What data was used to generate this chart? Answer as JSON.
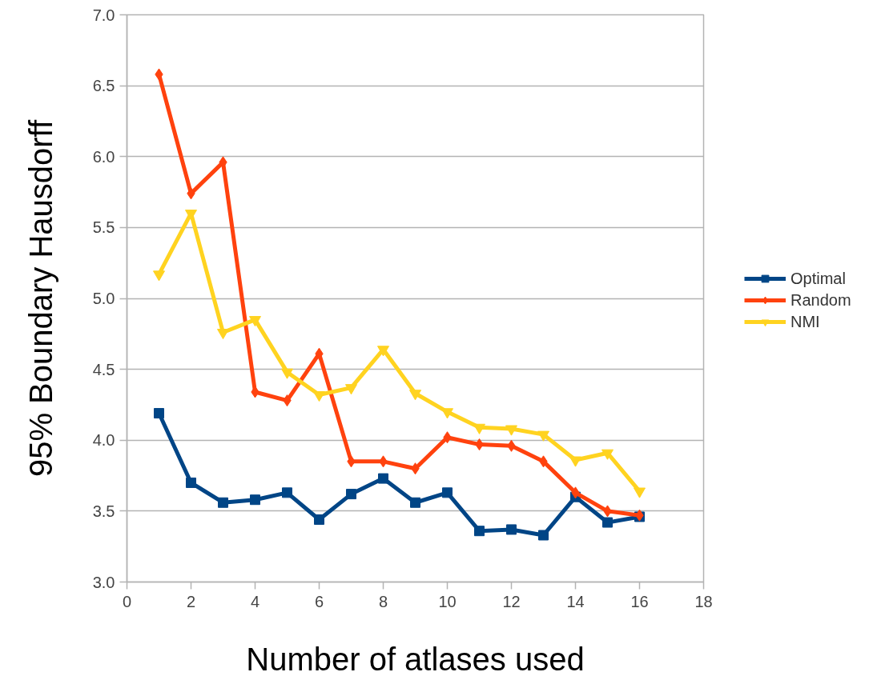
{
  "chart_data": {
    "type": "line",
    "xlabel": "Number of atlases used",
    "ylabel": "95% Boundary Hausdorff",
    "x": [
      1,
      2,
      3,
      4,
      5,
      6,
      7,
      8,
      9,
      10,
      11,
      12,
      13,
      14,
      15,
      16
    ],
    "xlim": [
      0,
      18
    ],
    "xticks": [
      0,
      2,
      4,
      6,
      8,
      10,
      12,
      14,
      16,
      18
    ],
    "ylim": [
      3,
      7
    ],
    "yticks": [
      {
        "value": 3,
        "label": "3.0"
      },
      3.5,
      {
        "value": 4,
        "label": "4.0"
      },
      4.5,
      {
        "value": 5,
        "label": "5.0"
      },
      5.5,
      {
        "value": 6,
        "label": "6.0"
      },
      6.5,
      {
        "value": 7,
        "label": "7.0"
      }
    ],
    "grid": "y",
    "legend": "right",
    "line_style": "solid",
    "series": [
      {
        "name": "Optimal",
        "color": "#004586",
        "marker": "square",
        "values": [
          4.19,
          3.7,
          3.56,
          3.58,
          3.63,
          3.44,
          3.62,
          3.73,
          3.56,
          3.63,
          3.36,
          3.37,
          3.33,
          3.6,
          3.42,
          3.46
        ]
      },
      {
        "name": "Random",
        "color": "#ff420e",
        "marker": "diamond",
        "values": [
          6.58,
          5.74,
          5.96,
          4.34,
          4.28,
          4.61,
          3.85,
          3.85,
          3.8,
          4.02,
          3.97,
          3.96,
          3.85,
          3.63,
          3.5,
          3.47
        ]
      },
      {
        "name": "NMI",
        "color": "#ffd320",
        "marker": "triangle",
        "values": [
          5.17,
          5.6,
          4.76,
          4.85,
          4.48,
          4.32,
          4.37,
          4.64,
          4.33,
          4.2,
          4.09,
          4.08,
          4.04,
          3.86,
          3.91,
          3.64
        ]
      }
    ]
  }
}
